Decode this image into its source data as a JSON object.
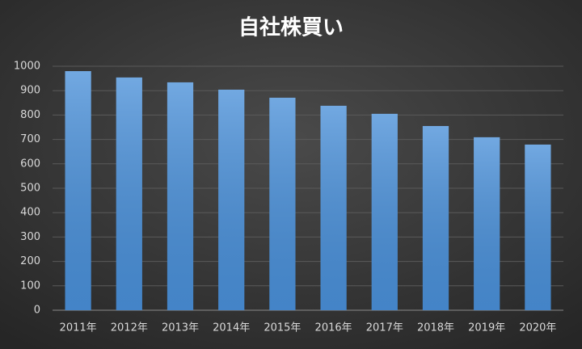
{
  "chart_data": {
    "type": "bar",
    "title": "自社株買い",
    "categories": [
      "2011年",
      "2012年",
      "2013年",
      "2014年",
      "2015年",
      "2016年",
      "2017年",
      "2018年",
      "2019年",
      "2020年"
    ],
    "values": [
      980,
      954,
      934,
      904,
      871,
      838,
      805,
      755,
      709,
      679
    ],
    "color": "#4a90d9",
    "ylim": [
      0,
      1000
    ],
    "yticks": [
      0,
      100,
      200,
      300,
      400,
      500,
      600,
      700,
      800,
      900,
      1000
    ],
    "grid": true
  }
}
